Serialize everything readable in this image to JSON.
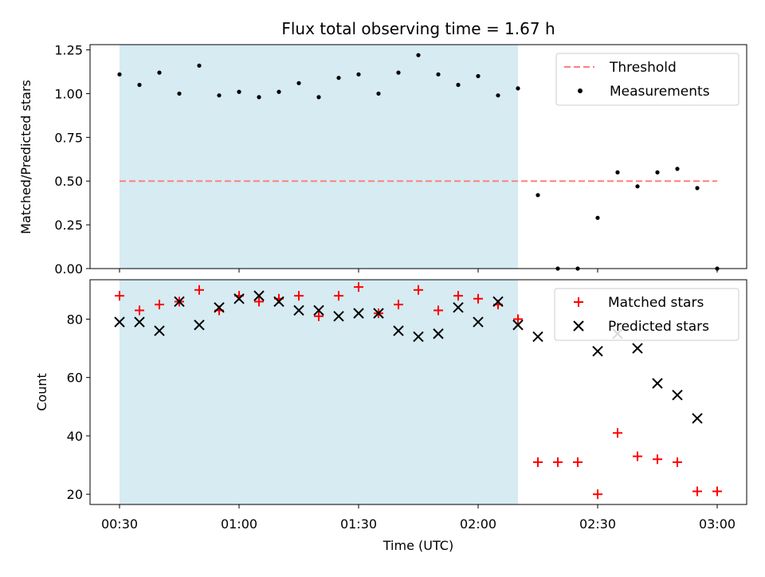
{
  "chart_data": [
    {
      "type": "scatter",
      "title": "Flux total observing time = 1.67 h",
      "xlabel": "",
      "ylabel": "Matched/Predicted stars",
      "ylim": [
        0,
        1.28
      ],
      "yticks": [
        0,
        0.25,
        0.5,
        0.75,
        1.0,
        1.25
      ],
      "ytick_labels": [
        "0.00",
        "0.25",
        "0.50",
        "0.75",
        "1.00",
        "1.25"
      ],
      "shaded_region": {
        "x_start": "00:30",
        "x_end": "02:10",
        "color": "#add8e6"
      },
      "threshold": {
        "name": "Threshold",
        "value": 0.5,
        "x_start": "00:30",
        "x_end": "03:00",
        "color": "#ff7f7f"
      },
      "legend_position": "top-right",
      "series": [
        {
          "name": "Measurements",
          "color": "#000000",
          "marker": "dot",
          "x": [
            "00:30",
            "00:35",
            "00:40",
            "00:45",
            "00:50",
            "00:55",
            "01:00",
            "01:05",
            "01:10",
            "01:15",
            "01:20",
            "01:25",
            "01:30",
            "01:35",
            "01:40",
            "01:45",
            "01:50",
            "01:55",
            "02:00",
            "02:05",
            "02:10",
            "02:15",
            "02:20",
            "02:25",
            "02:30",
            "02:35",
            "02:40",
            "02:45",
            "02:50",
            "02:55",
            "03:00"
          ],
          "values": [
            1.11,
            1.05,
            1.12,
            1.0,
            1.16,
            0.99,
            1.01,
            0.98,
            1.01,
            1.06,
            0.98,
            1.09,
            1.11,
            1.0,
            1.12,
            1.22,
            1.11,
            1.05,
            1.1,
            0.99,
            1.03,
            0.42,
            0.0,
            0.0,
            0.29,
            0.55,
            0.47,
            0.55,
            0.57,
            0.46,
            0.0
          ]
        }
      ]
    },
    {
      "type": "scatter",
      "title": "",
      "xlabel": "Time (UTC)",
      "ylabel": "Count",
      "ylim": [
        16.5,
        93.5
      ],
      "yticks": [
        20,
        40,
        60,
        80
      ],
      "ytick_labels": [
        "20",
        "40",
        "60",
        "80"
      ],
      "x_tick_labels": [
        "00:30",
        "01:00",
        "01:30",
        "02:00",
        "02:30",
        "03:00"
      ],
      "shaded_region": {
        "x_start": "00:30",
        "x_end": "02:10",
        "color": "#add8e6"
      },
      "legend_position": "top-right",
      "categories_x": [
        "00:30",
        "00:35",
        "00:40",
        "00:45",
        "00:50",
        "00:55",
        "01:00",
        "01:05",
        "01:10",
        "01:15",
        "01:20",
        "01:25",
        "01:30",
        "01:35",
        "01:40",
        "01:45",
        "01:50",
        "01:55",
        "02:00",
        "02:05",
        "02:10",
        "02:15",
        "02:20",
        "02:25",
        "02:30",
        "02:35",
        "02:40",
        "02:45",
        "02:50",
        "02:55",
        "03:00"
      ],
      "series": [
        {
          "name": "Matched stars",
          "color": "#ff0000",
          "marker": "plus",
          "values": [
            88,
            83,
            85,
            86,
            90,
            83,
            88,
            86,
            87,
            88,
            81,
            88,
            91,
            82,
            85,
            90,
            83,
            88,
            87,
            85,
            80,
            31,
            31,
            31,
            20,
            41,
            33,
            32,
            31,
            21,
            21
          ]
        },
        {
          "name": "Predicted stars",
          "color": "#000000",
          "marker": "x",
          "values": [
            79,
            79,
            76,
            86,
            78,
            84,
            87,
            88,
            86,
            83,
            83,
            81,
            82,
            82,
            76,
            74,
            75,
            84,
            79,
            86,
            78,
            74,
            null,
            null,
            69,
            75,
            70,
            58,
            54,
            46,
            null
          ]
        }
      ]
    }
  ]
}
